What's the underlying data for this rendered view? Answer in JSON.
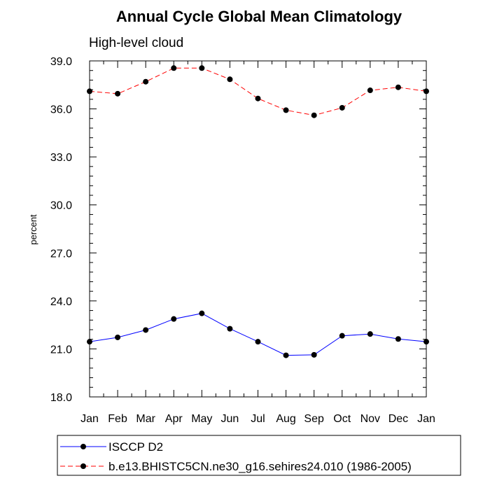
{
  "chart_data": {
    "type": "line",
    "title": "Annual Cycle Global Mean Climatology",
    "subtitle": "High-level cloud",
    "ylabel": "percent",
    "xlabel": "",
    "categories": [
      "Jan",
      "Feb",
      "Mar",
      "Apr",
      "May",
      "Jun",
      "Jul",
      "Aug",
      "Sep",
      "Oct",
      "Nov",
      "Dec",
      "Jan"
    ],
    "ylim": [
      18.0,
      39.0
    ],
    "yticks": [
      "18.0",
      "21.0",
      "24.0",
      "27.0",
      "30.0",
      "33.0",
      "36.0",
      "39.0"
    ],
    "grid": false,
    "legend_position": "bottom",
    "series": [
      {
        "name": "ISCCP D2",
        "color": "#0000ff",
        "dash": "solid",
        "values": [
          21.45,
          21.72,
          22.18,
          22.87,
          23.22,
          22.26,
          21.45,
          20.6,
          20.63,
          21.82,
          21.93,
          21.62,
          21.45
        ]
      },
      {
        "name": "b.e13.BHISTC5CN.ne30_g16.sehires24.010 (1986-2005)",
        "color": "#ff0000",
        "dash": "dashed",
        "values": [
          37.1,
          36.95,
          37.7,
          38.55,
          38.55,
          37.85,
          36.65,
          35.92,
          35.6,
          36.07,
          37.16,
          37.35,
          37.1
        ]
      }
    ]
  }
}
